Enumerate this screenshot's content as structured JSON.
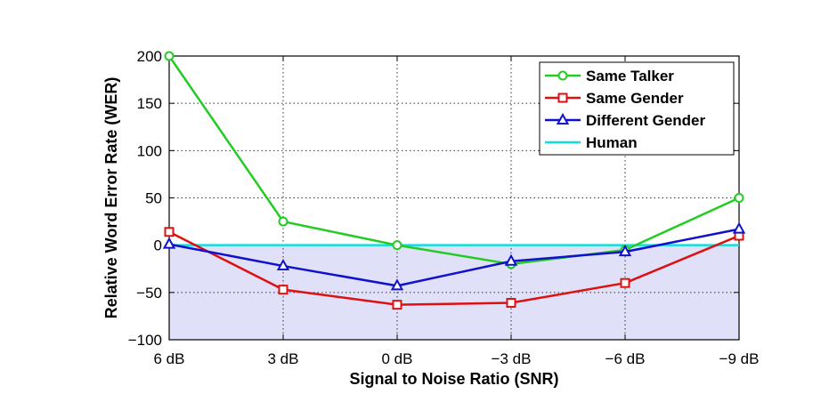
{
  "chart_data": {
    "type": "line",
    "xlabel": "Signal to Noise Ratio (SNR)",
    "ylabel": "Relative Word Error Rate (WER)",
    "categories": [
      "6 dB",
      "3 dB",
      "0 dB",
      "−3 dB",
      "−6 dB",
      "−9 dB"
    ],
    "ylim": [
      -100,
      200
    ],
    "yticks": [
      -100,
      -50,
      0,
      50,
      100,
      150,
      200
    ],
    "ytick_labels": [
      "−100",
      "−50",
      "0",
      "50",
      "100",
      "150",
      "200"
    ],
    "grid": true,
    "legend_position": "top-right",
    "shaded_region_color": "#e0e0f8",
    "series": [
      {
        "name": "Same Talker",
        "color": "#22cc22",
        "marker": "circle",
        "values": [
          200,
          25,
          0,
          -20,
          -5,
          50
        ]
      },
      {
        "name": "Same Gender",
        "color": "#dd1111",
        "marker": "square",
        "values": [
          14,
          -47,
          -63,
          -61,
          -40,
          10
        ]
      },
      {
        "name": "Different Gender",
        "color": "#1111cc",
        "marker": "triangle",
        "values": [
          1,
          -22,
          -43,
          -17,
          -7,
          17
        ]
      },
      {
        "name": "Human",
        "color": "#11dddd",
        "marker": "none",
        "values": [
          0,
          0,
          0,
          0,
          0,
          0
        ]
      }
    ]
  }
}
